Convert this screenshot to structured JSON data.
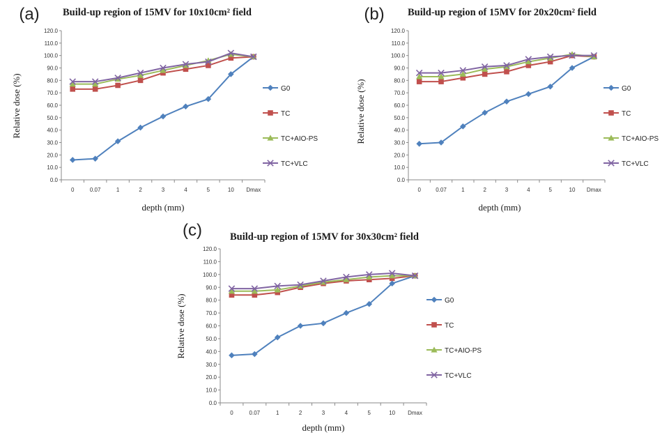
{
  "chart_data": [
    {
      "type": "line",
      "panel_label": "(a)",
      "title": "Build-up region of 15MV for 10x10cm² field",
      "xlabel": "depth (mm)",
      "ylabel": "Relative dose (%)",
      "categories": [
        "0",
        "0.07",
        "1",
        "2",
        "3",
        "4",
        "5",
        "10",
        "Dmax"
      ],
      "y_ticks": [
        "0.0",
        "10.0",
        "20.0",
        "30.0",
        "40.0",
        "50.0",
        "60.0",
        "70.0",
        "80.0",
        "90.0",
        "100.0",
        "110.0",
        "120.0"
      ],
      "ylim": [
        0,
        120
      ],
      "legend_position": "right",
      "series": [
        {
          "name": "G0",
          "color": "#4f81bd",
          "marker": "diamond",
          "values": [
            16,
            17,
            31,
            42,
            51,
            59,
            65,
            85,
            99
          ]
        },
        {
          "name": "TC",
          "color": "#c0504d",
          "marker": "square",
          "values": [
            73,
            73,
            76,
            80,
            86,
            89,
            92,
            98,
            99
          ]
        },
        {
          "name": "TC+AIO-PS",
          "color": "#9bbb59",
          "marker": "triangle",
          "values": [
            77,
            77,
            81,
            84,
            88,
            92,
            96,
            101,
            99
          ]
        },
        {
          "name": "TC+VLC",
          "color": "#8064a2",
          "marker": "x",
          "values": [
            79,
            79,
            82,
            86,
            90,
            93,
            95,
            102,
            99
          ]
        }
      ]
    },
    {
      "type": "line",
      "panel_label": "(b)",
      "title": "Build-up region of 15MV for 20x20cm² field",
      "xlabel": "depth (mm)",
      "ylabel": "Relative dose (%)",
      "categories": [
        "0",
        "0.07",
        "1",
        "2",
        "3",
        "4",
        "5",
        "10",
        "Dmax"
      ],
      "y_ticks": [
        "0.0",
        "10.0",
        "20.0",
        "30.0",
        "40.0",
        "50.0",
        "60.0",
        "70.0",
        "80.0",
        "90.0",
        "100.0",
        "110.0",
        "120.0"
      ],
      "ylim": [
        0,
        120
      ],
      "legend_position": "right",
      "series": [
        {
          "name": "G0",
          "color": "#4f81bd",
          "marker": "diamond",
          "values": [
            29,
            30,
            43,
            54,
            63,
            69,
            75,
            90,
            99
          ]
        },
        {
          "name": "TC",
          "color": "#c0504d",
          "marker": "square",
          "values": [
            79,
            79,
            82,
            85,
            87,
            92,
            95,
            100,
            99
          ]
        },
        {
          "name": "TC+AIO-PS",
          "color": "#9bbb59",
          "marker": "triangle",
          "values": [
            83,
            83,
            85,
            89,
            91,
            95,
            98,
            101,
            99
          ]
        },
        {
          "name": "TC+VLC",
          "color": "#8064a2",
          "marker": "x",
          "values": [
            86,
            86,
            88,
            91,
            92,
            97,
            99,
            100,
            100
          ]
        }
      ]
    },
    {
      "type": "line",
      "panel_label": "(c)",
      "title": "Build-up region of 15MV for 30x30cm² field",
      "xlabel": "depth (mm)",
      "ylabel": "Relative dose (%)",
      "categories": [
        "0",
        "0.07",
        "1",
        "2",
        "3",
        "4",
        "5",
        "10",
        "Dmax"
      ],
      "y_ticks": [
        "0.0",
        "10.0",
        "20.0",
        "30.0",
        "40.0",
        "50.0",
        "60.0",
        "70.0",
        "80.0",
        "90.0",
        "100.0",
        "110.0",
        "120.0"
      ],
      "ylim": [
        0,
        120
      ],
      "legend_position": "right",
      "series": [
        {
          "name": "G0",
          "color": "#4f81bd",
          "marker": "diamond",
          "values": [
            37,
            38,
            51,
            60,
            62,
            70,
            77,
            93,
            99
          ]
        },
        {
          "name": "TC",
          "color": "#c0504d",
          "marker": "square",
          "values": [
            84,
            84,
            86,
            90,
            93,
            95,
            96,
            97,
            99
          ]
        },
        {
          "name": "TC+AIO-PS",
          "color": "#9bbb59",
          "marker": "triangle",
          "values": [
            87,
            87,
            88,
            91,
            94,
            96,
            98,
            99,
            99
          ]
        },
        {
          "name": "TC+VLC",
          "color": "#8064a2",
          "marker": "x",
          "values": [
            89,
            89,
            91,
            92,
            95,
            98,
            100,
            101,
            99
          ]
        }
      ]
    }
  ]
}
